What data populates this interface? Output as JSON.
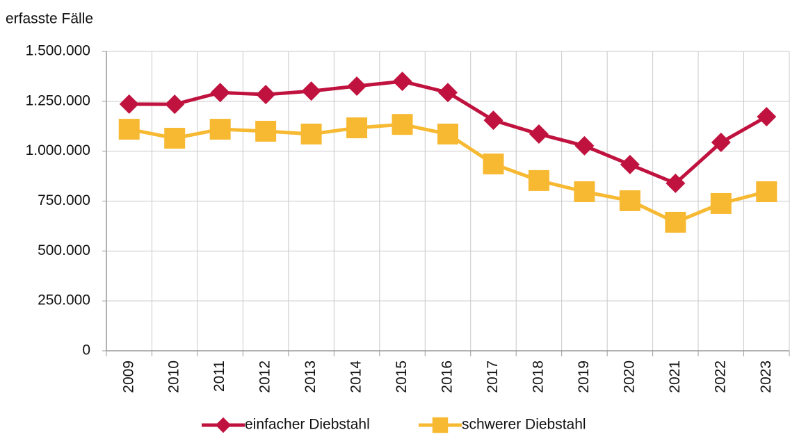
{
  "chart_data": {
    "type": "line",
    "y_label": "erfasste Fälle",
    "categories": [
      "2009",
      "2010",
      "2011",
      "2012",
      "2013",
      "2014",
      "2015",
      "2016",
      "2017",
      "2018",
      "2019",
      "2020",
      "2021",
      "2022",
      "2023"
    ],
    "series": [
      {
        "name": "einfacher Diebstahl",
        "color": "#c0123e",
        "marker": "diamond",
        "values": [
          1236000,
          1235000,
          1294000,
          1284000,
          1301000,
          1326000,
          1350000,
          1294000,
          1155000,
          1086000,
          1027000,
          933000,
          839000,
          1044000,
          1173000
        ]
      },
      {
        "name": "schwerer Diebstahl",
        "color": "#f7b932",
        "marker": "square",
        "values": [
          1110000,
          1065000,
          1110000,
          1100000,
          1086000,
          1117000,
          1134000,
          1086000,
          936000,
          853000,
          797000,
          752000,
          644000,
          738000,
          797000
        ]
      }
    ],
    "ylim": [
      0,
      1500000
    ],
    "yticks": [
      0,
      {
        "value": 250000,
        "label": "250.000"
      },
      {
        "value": 500000,
        "label": "500.000"
      },
      {
        "value": 750000,
        "label": "750.000"
      },
      {
        "value": 1000000,
        "label": "1.000.000"
      },
      {
        "value": 1250000,
        "label": "1.250.000"
      },
      {
        "value": 1500000,
        "label": "1.500.000"
      }
    ],
    "grid": true,
    "legend": "bottom"
  }
}
